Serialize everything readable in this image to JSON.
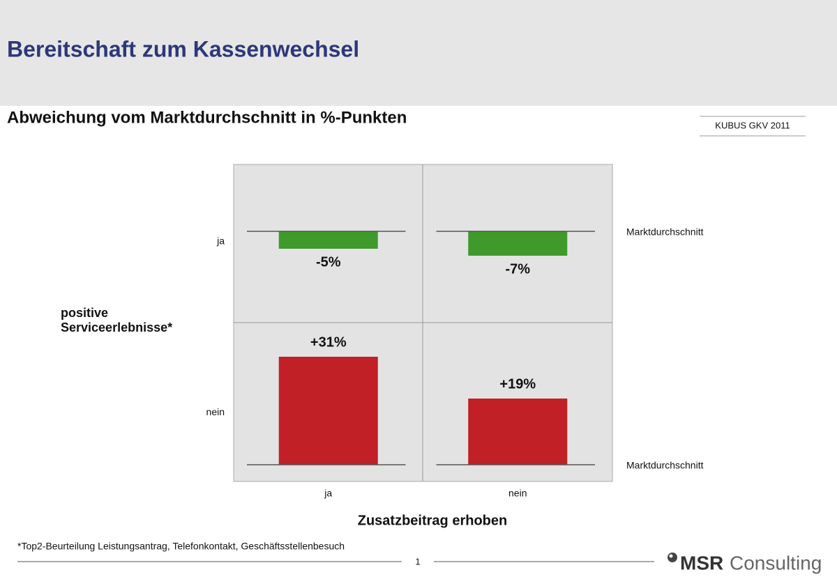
{
  "header": {
    "title": "Bereitschaft zum Kassenwechsel"
  },
  "chart_data": {
    "type": "bar",
    "title": "Abweichung vom Marktdurchschnitt in %-Punkten",
    "source": "KUBUS GKV 2011",
    "x_label": "Zusatzbeitrag erhoben",
    "y_label": [
      "positive",
      "Serviceerlebnisse*"
    ],
    "baseline_label": "Marktdurchschnitt",
    "categories": [
      "ja",
      "nein"
    ],
    "series": [
      {
        "name": "ja",
        "color": "#3f9a2b",
        "values": [
          -5,
          -7
        ],
        "value_labels": [
          "-5%",
          "-7%"
        ]
      },
      {
        "name": "nein",
        "color": "#c02026",
        "values": [
          31,
          19
        ],
        "value_labels": [
          "+31%",
          "+19%"
        ]
      }
    ]
  },
  "footer": {
    "footnote": "*Top2-Beurteilung Leistungsantrag,  Telefonkontakt, Geschäftsstellenbesuch",
    "page": "1",
    "logo": {
      "bold": "MSR",
      "text": "Consulting"
    }
  }
}
